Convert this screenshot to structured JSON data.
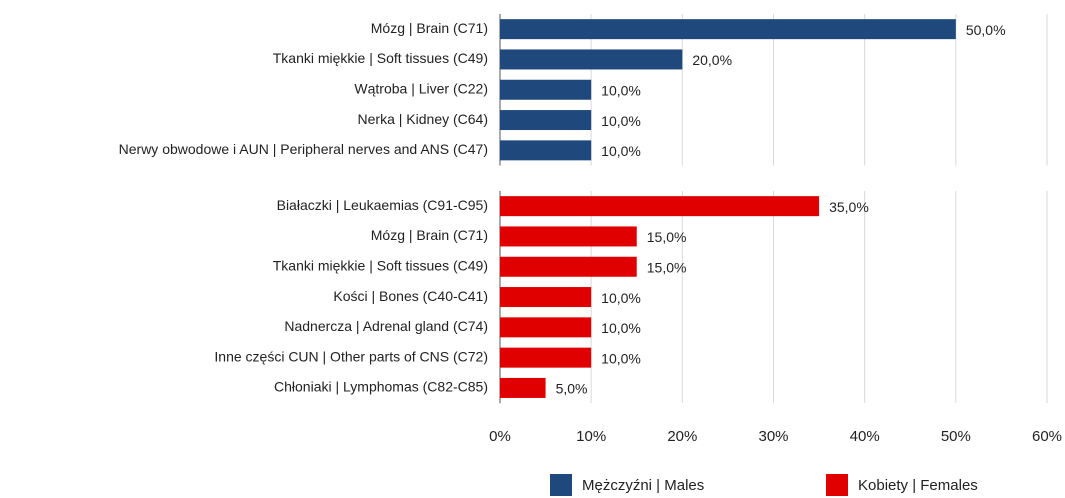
{
  "chart_data": {
    "type": "bar",
    "orientation": "horizontal",
    "xlim": [
      0,
      60
    ],
    "xticks": [
      {
        "value": 0,
        "label": "0%"
      },
      {
        "value": 10,
        "label": "10%"
      },
      {
        "value": 20,
        "label": "20%"
      },
      {
        "value": 30,
        "label": "30%"
      },
      {
        "value": 40,
        "label": "40%"
      },
      {
        "value": 50,
        "label": "50%"
      },
      {
        "value": 60,
        "label": "60%"
      }
    ],
    "grid": true,
    "legend": "bottom",
    "series": [
      {
        "name": "Mężczyźni | Males",
        "color": "#1f497d",
        "categories": [
          "Mózg | Brain (C71)",
          "Tkanki miękkie | Soft tissues (C49)",
          "Wątroba | Liver (C22)",
          "Nerka | Kidney (C64)",
          "Nerwy obwodowe i AUN | Peripheral nerves and ANS (C47)"
        ],
        "values": [
          50,
          20,
          10,
          10,
          10
        ],
        "value_labels": [
          "50,0%",
          "20,0%",
          "10,0%",
          "10,0%",
          "10,0%"
        ]
      },
      {
        "name": "Kobiety | Females",
        "color": "#e00000",
        "categories": [
          "Białaczki | Leukaemias (C91-C95)",
          "Mózg | Brain (C71)",
          "Tkanki miękkie | Soft tissues (C49)",
          "Kości | Bones (C40-C41)",
          "Nadnercza | Adrenal gland (C74)",
          "Inne części CUN | Other parts of CNS (C72)",
          "Chłoniaki | Lymphomas (C82-C85)"
        ],
        "values": [
          35,
          15,
          15,
          10,
          10,
          10,
          5
        ],
        "value_labels": [
          "35,0%",
          "15,0%",
          "15,0%",
          "10,0%",
          "10,0%",
          "10,0%",
          "5,0%"
        ]
      }
    ]
  }
}
